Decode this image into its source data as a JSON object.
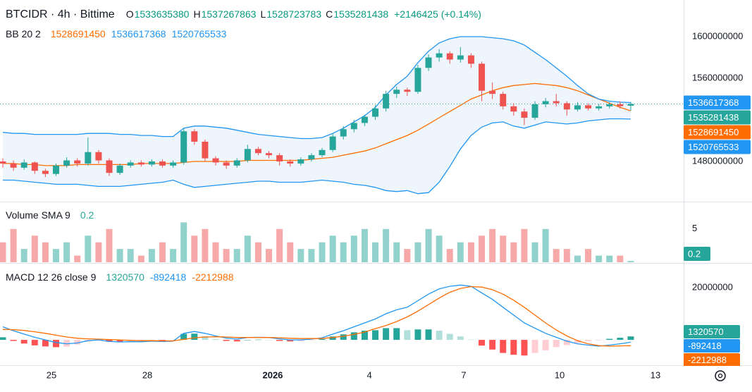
{
  "chart_data": [
    {
      "type": "candlestick",
      "title": "BTCIDR · 4h · Bittime",
      "ohlc_labels": [
        "O",
        "H",
        "L",
        "C"
      ],
      "change": "+2146425 (+0.14%)",
      "up_color": "#26a69a",
      "down_color": "#ef5350",
      "open": [
        1480000000.0,
        1478000000.0,
        1474000000.0,
        1479000000.0,
        1471000000.0,
        1468000000.0,
        1476000000.0,
        1481000000.0,
        1478000000.0,
        1489000000.0,
        1481000000.0,
        1469000000.0,
        1476000000.0,
        1479000000.0,
        1477000000.0,
        1480000000.0,
        1476000000.0,
        1479000000.0,
        1509000000.0,
        1499000000.0,
        1483000000.0,
        1479000000.0,
        1476000000.0,
        1481000000.0,
        1492000000.0,
        1488000000.0,
        1486000000.0,
        1480000000.0,
        1478000000.0,
        1482000000.0,
        1486000000.0,
        1491000000.0,
        1504000000.0,
        1511000000.0,
        1517000000.0,
        1523000000.0,
        1531000000.0,
        1545000000.0,
        1549000000.0,
        1547000000.0,
        1570000000.0,
        1580000000.0,
        1584000000.0,
        1578000000.0,
        1582000000.0,
        1574000000.0,
        1548000000.0,
        1545000000.0,
        1533000000.0,
        1528000000.0,
        1522000000.0,
        1535000000.0,
        1538000000.0,
        1536000000.0,
        1530000000.0,
        1534000000.0,
        1531000000.0,
        1533000000.0,
        1535000000.0,
        1533635380
      ],
      "high": [
        1483000000.0,
        1481000000.0,
        1482000000.0,
        1480000000.0,
        1473000000.0,
        1478000000.0,
        1484000000.0,
        1483000000.0,
        1503000000.0,
        1491000000.0,
        1483000000.0,
        1478000000.0,
        1481000000.0,
        1481000000.0,
        1482000000.0,
        1482000000.0,
        1481000000.0,
        1512000000.0,
        1511000000.0,
        1501000000.0,
        1485000000.0,
        1481000000.0,
        1483000000.0,
        1496000000.0,
        1494000000.0,
        1490000000.0,
        1488000000.0,
        1482000000.0,
        1484000000.0,
        1488000000.0,
        1493000000.0,
        1507000000.0,
        1514000000.0,
        1520000000.0,
        1525000000.0,
        1534000000.0,
        1548000000.0,
        1552000000.0,
        1551000000.0,
        1573000000.0,
        1583000000.0,
        1588000000.0,
        1586000000.0,
        1590000000.0,
        1584000000.0,
        1576000000.0,
        1556000000.0,
        1547000000.0,
        1536000000.0,
        1531000000.0,
        1538000000.0,
        1541000000.0,
        1545000000.0,
        1538000000.0,
        1537000000.0,
        1536000000.0,
        1535000000.0,
        1537000000.0,
        1538000000.0,
        1537267863
      ],
      "low": [
        1474000000.0,
        1471000000.0,
        1472000000.0,
        1468000000.0,
        1465000000.0,
        1466000000.0,
        1474000000.0,
        1475000000.0,
        1476000000.0,
        1478000000.0,
        1466000000.0,
        1467000000.0,
        1474000000.0,
        1475000000.0,
        1475000000.0,
        1474000000.0,
        1474000000.0,
        1477000000.0,
        1496000000.0,
        1480000000.0,
        1476000000.0,
        1473000000.0,
        1474000000.0,
        1479000000.0,
        1486000000.0,
        1483000000.0,
        1476000000.0,
        1475000000.0,
        1476000000.0,
        1480000000.0,
        1484000000.0,
        1489000000.0,
        1501000000.0,
        1508000000.0,
        1514000000.0,
        1520000000.0,
        1528000000.0,
        1541000000.0,
        1543000000.0,
        1545000000.0,
        1567000000.0,
        1576000000.0,
        1574000000.0,
        1575000000.0,
        1570000000.0,
        1538000000.0,
        1540000000.0,
        1530000000.0,
        1524000000.0,
        1515000000.0,
        1520000000.0,
        1532000000.0,
        1533000000.0,
        1524000000.0,
        1528000000.0,
        1529000000.0,
        1529000000.0,
        1531000000.0,
        1531000000.0,
        1528723783
      ],
      "close": [
        1478000000.0,
        1474000000.0,
        1479000000.0,
        1471000000.0,
        1468000000.0,
        1476000000.0,
        1481000000.0,
        1478000000.0,
        1489000000.0,
        1481000000.0,
        1469000000.0,
        1476000000.0,
        1479000000.0,
        1477000000.0,
        1480000000.0,
        1476000000.0,
        1479000000.0,
        1509000000.0,
        1499000000.0,
        1483000000.0,
        1479000000.0,
        1476000000.0,
        1481000000.0,
        1492000000.0,
        1488000000.0,
        1486000000.0,
        1480000000.0,
        1478000000.0,
        1482000000.0,
        1486000000.0,
        1491000000.0,
        1504000000.0,
        1511000000.0,
        1517000000.0,
        1523000000.0,
        1531000000.0,
        1545000000.0,
        1549000000.0,
        1547000000.0,
        1570000000.0,
        1580000000.0,
        1584000000.0,
        1578000000.0,
        1582000000.0,
        1574000000.0,
        1548000000.0,
        1545000000.0,
        1533000000.0,
        1528000000.0,
        1522000000.0,
        1535000000.0,
        1538000000.0,
        1536000000.0,
        1530000000.0,
        1534000000.0,
        1531000000.0,
        1533000000.0,
        1535000000.0,
        1533135013,
        1535281438
      ],
      "indicator": "BB 20 2",
      "band_fill": "#eef5fd",
      "bands": [
        {
          "color": "#ff6d00",
          "values": [
            1478000000.0,
            1478000000.0,
            1477000000.0,
            1477000000.0,
            1476000000.0,
            1476000000.0,
            1476000000.0,
            1477000000.0,
            1477000000.0,
            1477000000.0,
            1477000000.0,
            1477000000.0,
            1477000000.0,
            1478000000.0,
            1478000000.0,
            1478000000.0,
            1478000000.0,
            1479000000.0,
            1480000000.0,
            1480000000.0,
            1480000000.0,
            1480000000.0,
            1480000000.0,
            1481000000.0,
            1481000000.0,
            1481000000.0,
            1481000000.0,
            1481000000.0,
            1481000000.0,
            1482000000.0,
            1483000000.0,
            1484000000.0,
            1486000000.0,
            1488000000.0,
            1490000000.0,
            1493000000.0,
            1497000000.0,
            1501000000.0,
            1505000000.0,
            1510000000.0,
            1516000000.0,
            1522000000.0,
            1528000000.0,
            1534000000.0,
            1540000000.0,
            1544000000.0,
            1548000000.0,
            1551000000.0,
            1553000000.0,
            1554000000.0,
            1555000000.0,
            1554000000.0,
            1553000000.0,
            1551000000.0,
            1548000000.0,
            1544000000.0,
            1540000000.0,
            1536000000.0,
            1532000000.0,
            1528691450
          ]
        },
        {
          "color": "#2196f3",
          "values": [
            1508000000.0,
            1507000000.0,
            1507000000.0,
            1506000000.0,
            1506000000.0,
            1506000000.0,
            1506000000.0,
            1506000000.0,
            1507000000.0,
            1507000000.0,
            1507000000.0,
            1506000000.0,
            1506000000.0,
            1505000000.0,
            1505000000.0,
            1504000000.0,
            1504000000.0,
            1512000000.0,
            1514000000.0,
            1514000000.0,
            1513000000.0,
            1512000000.0,
            1510000000.0,
            1508000000.0,
            1506000000.0,
            1505000000.0,
            1504000000.0,
            1503000000.0,
            1502000000.0,
            1502000000.0,
            1503000000.0,
            1507000000.0,
            1512000000.0,
            1518000000.0,
            1524000000.0,
            1532000000.0,
            1544000000.0,
            1554000000.0,
            1562000000.0,
            1575000000.0,
            1586000000.0,
            1594000000.0,
            1598000000.0,
            1600000000.0,
            1600000000.0,
            1600000000.0,
            1599000000.0,
            1598000000.0,
            1596000000.0,
            1592000000.0,
            1585000000.0,
            1578000000.0,
            1570000000.0,
            1562000000.0,
            1553000000.0,
            1545000000.0,
            1540000000.0,
            1538000000.0,
            1537000000.0,
            1536617368
          ]
        },
        {
          "color": "#2196f3",
          "values": [
            1462000000.0,
            1462000000.0,
            1461000000.0,
            1460000000.0,
            1459000000.0,
            1458000000.0,
            1458000000.0,
            1458000000.0,
            1457000000.0,
            1456000000.0,
            1456000000.0,
            1456000000.0,
            1457000000.0,
            1458000000.0,
            1459000000.0,
            1460000000.0,
            1462000000.0,
            1458000000.0,
            1455000000.0,
            1456000000.0,
            1457000000.0,
            1458000000.0,
            1459000000.0,
            1460000000.0,
            1461000000.0,
            1461000000.0,
            1460000000.0,
            1460000000.0,
            1460000000.0,
            1461000000.0,
            1462000000.0,
            1461000000.0,
            1460000000.0,
            1458000000.0,
            1457000000.0,
            1455000000.0,
            1452000000.0,
            1451000000.0,
            1452000000.0,
            1449000000.0,
            1450000000.0,
            1460000000.0,
            1475000000.0,
            1492000000.0,
            1505000000.0,
            1513000000.0,
            1517000000.0,
            1518000000.0,
            1514000000.0,
            1512000000.0,
            1515000000.0,
            1518000000.0,
            1517000000.0,
            1516000000.0,
            1517000000.0,
            1519000000.0,
            1520000000.0,
            1521000000.0,
            1521000000.0,
            1520765533
          ]
        }
      ],
      "ylim": [
        1442000000,
        1635300000
      ],
      "yticks": [
        1600000000,
        1560000000,
        1480000000
      ]
    },
    {
      "type": "bar",
      "title": "Volume SMA 9",
      "up_color": "#92d2cc",
      "down_color": "#f7a9a9",
      "tag_color": "#26a69a",
      "values": [
        3,
        5,
        2,
        4,
        3,
        2,
        3,
        1,
        4,
        3,
        5,
        2,
        2,
        1,
        2,
        3,
        2,
        6,
        4,
        5,
        3,
        2,
        2,
        4,
        3,
        2,
        5,
        3,
        2,
        2,
        3,
        4,
        3,
        4,
        5,
        3,
        5,
        3,
        2,
        3,
        5,
        4,
        2,
        3,
        3,
        4,
        5,
        4,
        3,
        5,
        3,
        5,
        2,
        2,
        1,
        2,
        1,
        1,
        1,
        0.2
      ],
      "ylim": [
        0,
        8.9
      ],
      "yticks": [
        5
      ]
    },
    {
      "type": "line",
      "title": "MACD 12 26 close 9",
      "histogram": {
        "colors": [
          "#26a69a",
          "#b2dfdb",
          "#ffcdd2",
          "#ff5252"
        ],
        "values": [
          1000000.0,
          -400000.0,
          -1400000.0,
          -2100000.0,
          -2500000.0,
          -2800000.0,
          -2600000.0,
          -1800000.0,
          -700000.0,
          -300000.0,
          -700000.0,
          -800000.0,
          -500000.0,
          -400000.0,
          -200000.0,
          -200000.0,
          -100000.0,
          2300000.0,
          2400000.0,
          1400000.0,
          300000.0,
          -400000.0,
          -600000.0,
          0,
          100000.0,
          0,
          -400000.0,
          -600000.0,
          -500000.0,
          -200000.0,
          300000.0,
          1300000.0,
          2100000.0,
          2900000.0,
          3500000.0,
          3700000.0,
          4500000.0,
          4500000.0,
          3700000.0,
          4000000.0,
          4000000.0,
          3500000.0,
          2300000.0,
          1300000.0,
          100000.0,
          -2200000.0,
          -3700000.0,
          -5000000.0,
          -5700000.0,
          -6000000.0,
          -5000000.0,
          -4000000.0,
          -2800000.0,
          -2000000.0,
          -1200000.0,
          -500000.0,
          -200000.0,
          400000.0,
          800000.0,
          1320570
        ]
      },
      "series": [
        {
          "color": "#2196f3",
          "values": [
            5000000.0,
            3500000.0,
            2200000.0,
            1000000.0,
            0,
            -1000000.0,
            -1500000.0,
            -1200000.0,
            -300000.0,
            0,
            -600000.0,
            -800000.0,
            -700000.0,
            -700000.0,
            -500000.0,
            -600000.0,
            -500000.0,
            2500000.0,
            3200000.0,
            2500000.0,
            1500000.0,
            700000.0,
            300000.0,
            900000.0,
            1000000.0,
            900000.0,
            400000.0,
            0,
            0,
            300000.0,
            800000.0,
            2200000.0,
            3500000.0,
            5000000.0,
            6500000.0,
            8000000.0,
            10000000.0,
            11500000.0,
            12500000.0,
            15000000.0,
            17500000.0,
            19500000.0,
            20500000.0,
            21000000.0,
            20500000.0,
            18000000.0,
            15500000.0,
            12500000.0,
            9500000.0,
            6500000.0,
            4500000.0,
            2500000.0,
            1000000.0,
            -500000.0,
            -1500000.0,
            -2000000.0,
            -2400000.0,
            -2000000.0,
            -1500000.0,
            -892418
          ]
        },
        {
          "color": "#ff6d00",
          "values": [
            4000000.0,
            3900000.0,
            3600000.0,
            3100000.0,
            2500000.0,
            1800000.0,
            1100000.0,
            600000.0,
            400000.0,
            300000.0,
            100000.0,
            0,
            -200000.0,
            -300000.0,
            -300000.0,
            -400000.0,
            -400000.0,
            200000.0,
            800000.0,
            1100000.0,
            1200000.0,
            1100000.0,
            900000.0,
            900000.0,
            900000.0,
            900000.0,
            800000.0,
            600000.0,
            500000.0,
            500000.0,
            500000.0,
            900000.0,
            1400000.0,
            2100000.0,
            3000000.0,
            4300000.0,
            5500000.0,
            7000000.0,
            8800000.0,
            11000000.0,
            13500000.0,
            16000000.0,
            18200000.0,
            19700000.0,
            20400000.0,
            20200000.0,
            19200000.0,
            17500000.0,
            15200000.0,
            12500000.0,
            9500000.0,
            6500000.0,
            3800000.0,
            1500000.0,
            -300000.0,
            -1500000.0,
            -2200000.0,
            -2400000.0,
            -2300000.0,
            -2212988
          ]
        }
      ],
      "ylim": [
        -9700000,
        28900000
      ],
      "yticks": [
        20000000
      ],
      "xlim": [
        -0.265,
        63.97
      ],
      "xticks": [
        {
          "value": 4.57,
          "label": "25"
        },
        {
          "value": 13.58,
          "label": "28"
        },
        {
          "value": 25.36,
          "label": "2026"
        },
        {
          "value": 34.44,
          "label": "4"
        },
        {
          "value": 43.31,
          "label": "7"
        },
        {
          "value": 52.32,
          "label": "10"
        },
        {
          "value": 61.32,
          "label": "13"
        }
      ]
    }
  ]
}
